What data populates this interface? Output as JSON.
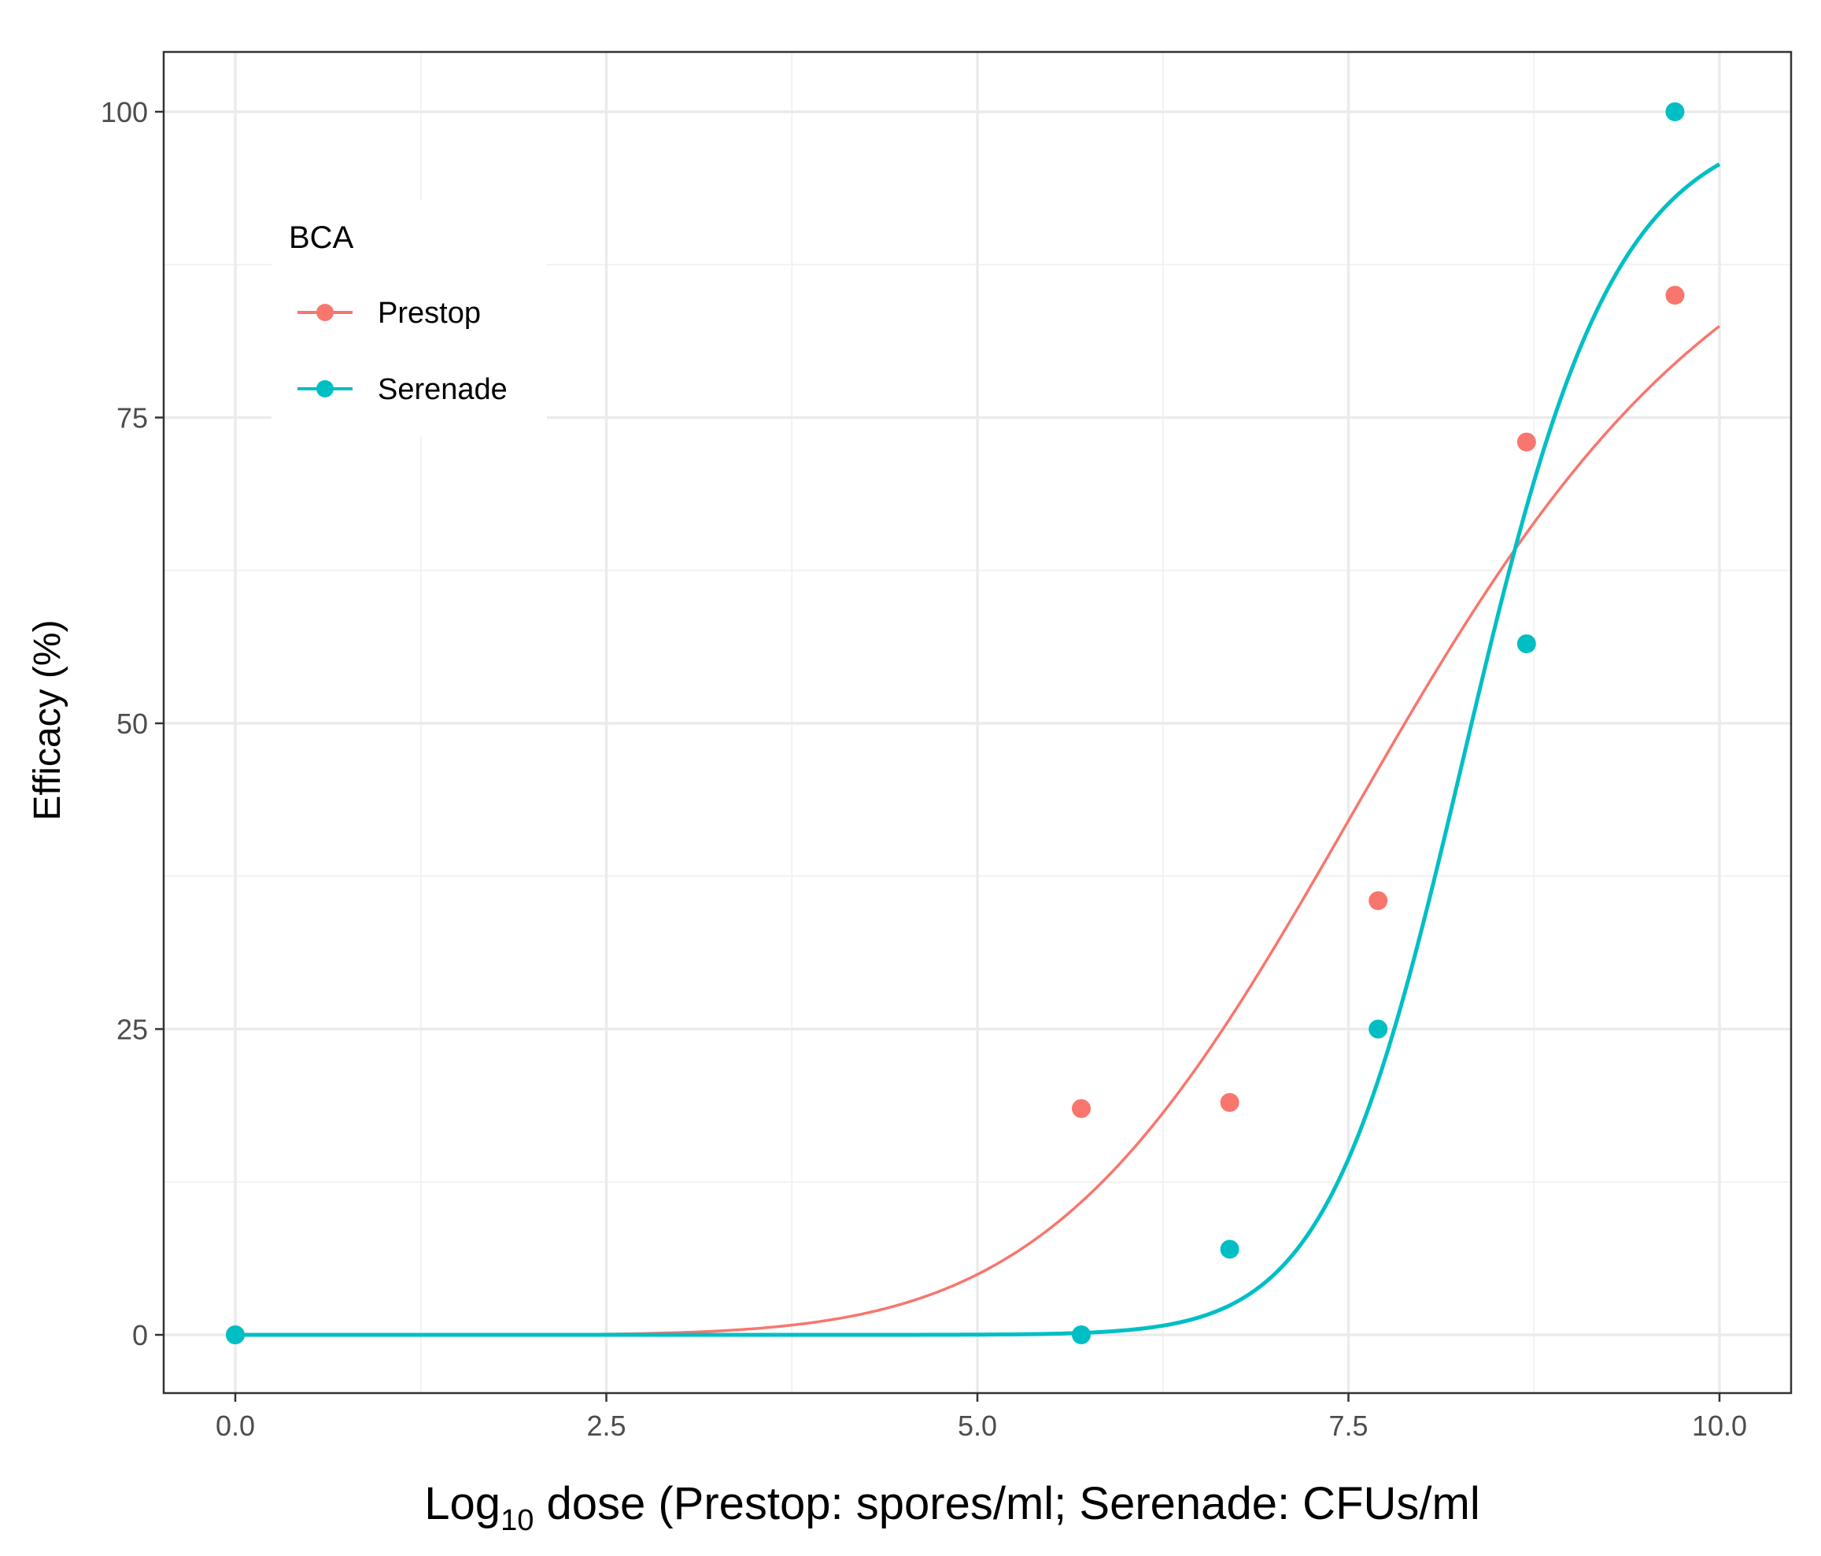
{
  "chart_data": {
    "type": "scatter",
    "title": "",
    "xlabel": {
      "prefix": "Log",
      "subscript": "10",
      "rest": " dose (Prestop: spores/ml; Serenade: CFUs/ml"
    },
    "ylabel": "Efficacy (%)",
    "xlim": [
      -0.5,
      10.5
    ],
    "ylim": [
      -5,
      105
    ],
    "x_ticks": [
      0,
      2.5,
      5,
      7.5,
      10
    ],
    "x_tick_labels": [
      "0.0",
      "2.5",
      "5.0",
      "7.5",
      "10.0"
    ],
    "x_minor_ticks": [
      1.25,
      3.75,
      6.25,
      8.75
    ],
    "y_ticks": [
      0,
      25,
      50,
      75,
      100
    ],
    "y_tick_labels": [
      "0",
      "25",
      "50",
      "75",
      "100"
    ],
    "y_minor_ticks": [
      12.5,
      37.5,
      62.5,
      87.5
    ],
    "grid": true,
    "legend": {
      "title": "BCA",
      "position": "top-left"
    },
    "series": [
      {
        "name": "Prestop",
        "color": "#F8766D",
        "points": [
          {
            "x": 0.0,
            "y": 0
          },
          {
            "x": 5.7,
            "y": 18.5
          },
          {
            "x": 6.7,
            "y": 19
          },
          {
            "x": 7.7,
            "y": 35.5
          },
          {
            "x": 8.7,
            "y": 73
          },
          {
            "x": 9.7,
            "y": 85
          }
        ],
        "fit": {
          "model": "log-logistic",
          "ed50": 7.88,
          "slope": 6.5,
          "upper": 100
        }
      },
      {
        "name": "Serenade",
        "color": "#00BFC4",
        "points": [
          {
            "x": 0.0,
            "y": 0
          },
          {
            "x": 5.7,
            "y": 0
          },
          {
            "x": 6.7,
            "y": 7
          },
          {
            "x": 7.7,
            "y": 25
          },
          {
            "x": 8.7,
            "y": 56.5
          },
          {
            "x": 9.7,
            "y": 100
          }
        ],
        "fit": {
          "model": "log-logistic",
          "ed50": 8.33,
          "slope": 17,
          "upper": 100
        }
      }
    ]
  }
}
